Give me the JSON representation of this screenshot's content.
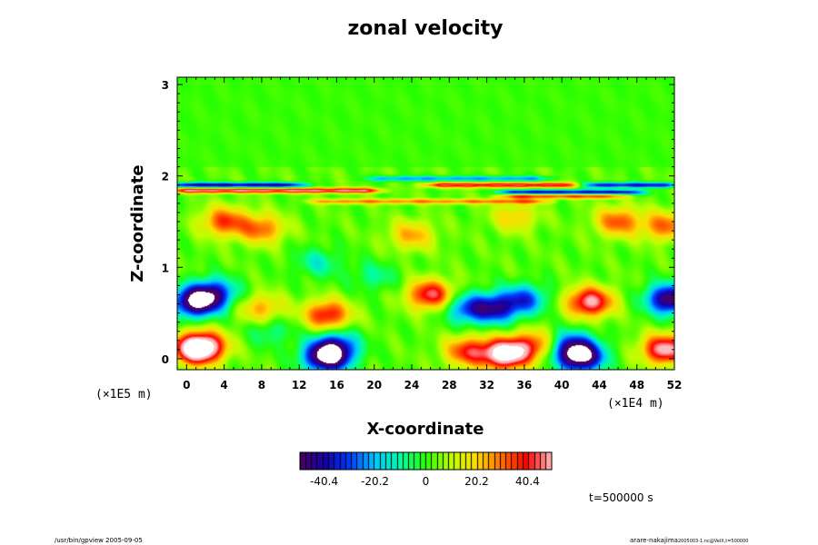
{
  "chart_data": {
    "type": "heatmap",
    "title": "zonal velocity",
    "xlabel": "X-coordinate",
    "ylabel": "Z-coordinate",
    "x_unit": "(×1E4 m)",
    "y_unit": "(×1E5 m)",
    "xlim": [
      -1,
      52
    ],
    "ylim": [
      -0.12,
      3.08
    ],
    "x_ticks": [
      "0",
      "4",
      "8",
      "12",
      "16",
      "20",
      "24",
      "28",
      "32",
      "36",
      "40",
      "44",
      "48",
      "52"
    ],
    "x_tick_values": [
      0,
      4,
      8,
      12,
      16,
      20,
      24,
      28,
      32,
      36,
      40,
      44,
      48,
      52
    ],
    "y_ticks": [
      "0",
      "1",
      "2",
      "3"
    ],
    "y_tick_values": [
      0,
      1,
      2,
      3
    ],
    "colorbar": {
      "min": -50,
      "max": 50,
      "tick_labels": [
        "-40.4",
        "-20.2",
        "0",
        "20.2",
        "40.4"
      ],
      "tick_values": [
        -40.4,
        -20.2,
        0,
        20.2,
        40.4
      ]
    },
    "features": [
      {
        "x": 1,
        "z": 0.62,
        "value": -60
      },
      {
        "x": 51.5,
        "z": 0.65,
        "value": -55
      },
      {
        "x": 3,
        "z": 0.72,
        "value": -35
      },
      {
        "x": 1,
        "z": 0.1,
        "value": 55
      },
      {
        "x": 2,
        "z": 0.15,
        "value": 30
      },
      {
        "x": 51,
        "z": 0.1,
        "value": 50
      },
      {
        "x": 15,
        "z": 0.02,
        "value": -65
      },
      {
        "x": 16,
        "z": 0.15,
        "value": -30
      },
      {
        "x": 42,
        "z": 0.02,
        "value": -62
      },
      {
        "x": 41,
        "z": 0.15,
        "value": -30
      },
      {
        "x": 34,
        "z": 0.05,
        "value": 62
      },
      {
        "x": 30,
        "z": 0.08,
        "value": 35
      },
      {
        "x": 37,
        "z": 0.15,
        "value": 30
      },
      {
        "x": 33,
        "z": 0.55,
        "value": -38
      },
      {
        "x": 30,
        "z": 0.55,
        "value": -32
      },
      {
        "x": 36,
        "z": 0.65,
        "value": -32
      },
      {
        "x": 43,
        "z": 0.62,
        "value": 48
      },
      {
        "x": 15,
        "z": 0.48,
        "value": 38
      },
      {
        "x": 8,
        "z": 0.55,
        "value": 22
      },
      {
        "x": 9,
        "z": 0.3,
        "value": -12
      },
      {
        "x": 26,
        "z": 0.7,
        "value": 42
      },
      {
        "x": 4,
        "z": 1.5,
        "value": 32
      },
      {
        "x": 8,
        "z": 1.42,
        "value": 28
      },
      {
        "x": 24,
        "z": 1.35,
        "value": 22
      },
      {
        "x": 35,
        "z": 1.55,
        "value": 18
      },
      {
        "x": 46,
        "z": 1.5,
        "value": 30
      },
      {
        "x": 51,
        "z": 1.45,
        "value": 28
      },
      {
        "x": 14,
        "z": 1.05,
        "value": -15
      },
      {
        "x": 20,
        "z": 0.9,
        "value": -12
      }
    ],
    "bands": [
      {
        "z": 1.9,
        "value": -45,
        "x_from": -1,
        "x_to": 12
      },
      {
        "z": 1.9,
        "value": 40,
        "x_from": 26,
        "x_to": 42
      },
      {
        "z": 1.9,
        "value": -40,
        "x_from": 42,
        "x_to": 52
      },
      {
        "z": 1.84,
        "value": 45,
        "x_from": -1,
        "x_to": 20
      },
      {
        "z": 1.82,
        "value": -45,
        "x_from": 34,
        "x_to": 48
      },
      {
        "z": 1.78,
        "value": 35,
        "x_from": 34,
        "x_to": 46
      },
      {
        "z": 1.97,
        "value": -25,
        "x_from": 20,
        "x_to": 38
      },
      {
        "z": 1.72,
        "value": 25,
        "x_from": 14,
        "x_to": 38
      }
    ],
    "annotation": "t=500000 s"
  },
  "footer": {
    "left": "/usr/bin/gpview 2005-09-05",
    "right": "arare-nakajima",
    "right_sub": "2005003-1.nc@VelX,t=500000"
  }
}
